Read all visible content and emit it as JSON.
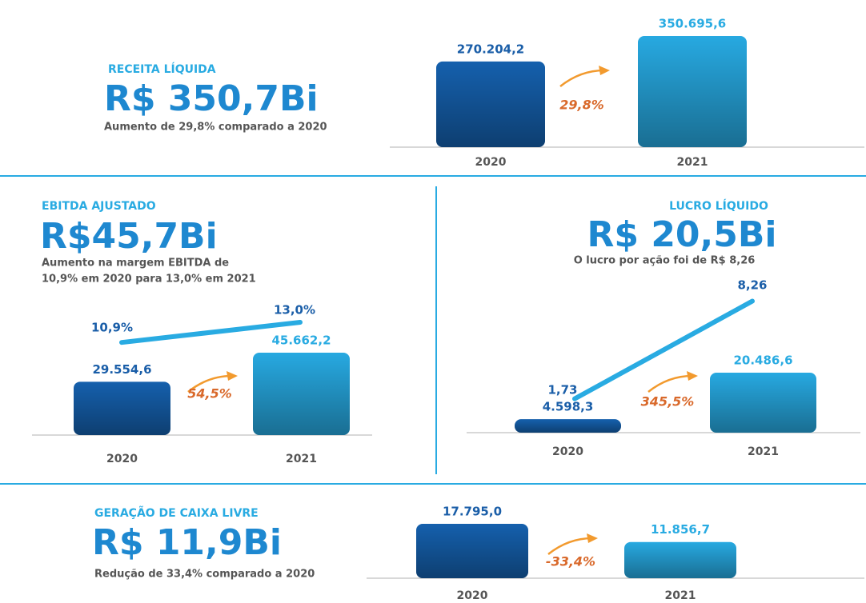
{
  "chart_data": [
    {
      "type": "bar",
      "title": "RECEITA LÍQUIDA",
      "headline": "R$ 350,7Bi",
      "subtitle": [
        "Aumento de 29,8% comparado a 2020"
      ],
      "categories": [
        "2020",
        "2021"
      ],
      "values": [
        270204.2,
        350695.6
      ],
      "value_labels": [
        "270.204,2",
        "350.695,6"
      ],
      "colors": [
        "#1560ad",
        "#27a9e1"
      ],
      "growth": "29,8%"
    },
    {
      "type": "bar",
      "title": "EBITDA AJUSTADO",
      "headline": "R$45,7Bi",
      "subtitle": [
        "Aumento na margem EBITDA de",
        "10,9% em 2020 para 13,0% em 2021"
      ],
      "categories": [
        "2020",
        "2021"
      ],
      "values": [
        29554.6,
        45662.2
      ],
      "value_labels": [
        "29.554,6",
        "45.662,2"
      ],
      "colors": [
        "#1560ad",
        "#27a9e1"
      ],
      "growth": "54,5%",
      "line": {
        "color": "#29abe2",
        "values": [
          10.9,
          13.0
        ],
        "value_labels": [
          "10,9%",
          "13,0%"
        ]
      }
    },
    {
      "type": "bar",
      "title": "LUCRO LÍQUIDO",
      "headline": "R$ 20,5Bi",
      "subtitle": [
        "O lucro por ação foi de R$ 8,26"
      ],
      "categories": [
        "2020",
        "2021"
      ],
      "values": [
        4598.3,
        20486.6
      ],
      "value_labels": [
        "4.598,3",
        "20.486,6"
      ],
      "colors": [
        "#1560ad",
        "#27a9e1"
      ],
      "growth": "345,5%",
      "line": {
        "color": "#29abe2",
        "values": [
          1.73,
          8.26
        ],
        "value_labels": [
          "1,73",
          "8,26"
        ]
      }
    },
    {
      "type": "bar",
      "title": "GERAÇÃO DE CAIXA LIVRE",
      "headline": "R$ 11,9Bi",
      "subtitle": [
        "Redução de 33,4% comparado a 2020"
      ],
      "categories": [
        "2020",
        "2021"
      ],
      "values": [
        17795.0,
        11856.7
      ],
      "value_labels": [
        "17.795,0",
        "11.856,7"
      ],
      "colors": [
        "#1560ad",
        "#27a9e1"
      ],
      "growth": "-33,4%"
    }
  ]
}
